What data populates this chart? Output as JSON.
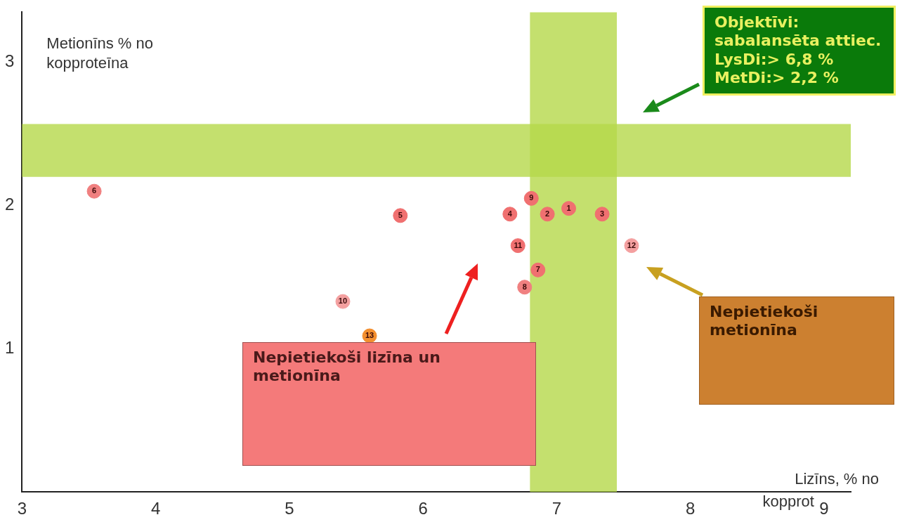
{
  "chart_data": {
    "type": "scatter",
    "xlabel": "Lizīns, % no kopprot",
    "ylabel": "Metionīns % no kopproteīna",
    "series": [
      {
        "name": "1",
        "x": [
          7.09
        ],
        "values": [
          1.98
        ],
        "color": "#f07070"
      },
      {
        "name": "2",
        "x": [
          6.93
        ],
        "values": [
          1.94
        ],
        "color": "#f07070"
      },
      {
        "name": "3",
        "x": [
          7.34
        ],
        "values": [
          1.94
        ],
        "color": "#f07070"
      },
      {
        "name": "4",
        "x": [
          6.65
        ],
        "values": [
          1.94
        ],
        "color": "#f07070"
      },
      {
        "name": "5",
        "x": [
          5.83
        ],
        "values": [
          1.93
        ],
        "color": "#f07070"
      },
      {
        "name": "6",
        "x": [
          3.54
        ],
        "values": [
          2.1
        ],
        "color": "#f08080"
      },
      {
        "name": "7",
        "x": [
          6.86
        ],
        "values": [
          1.55
        ],
        "color": "#f07070"
      },
      {
        "name": "8",
        "x": [
          6.76
        ],
        "values": [
          1.43
        ],
        "color": "#f08080"
      },
      {
        "name": "9",
        "x": [
          6.81
        ],
        "values": [
          2.05
        ],
        "color": "#f07070"
      },
      {
        "name": "10",
        "x": [
          5.4
        ],
        "values": [
          1.33
        ],
        "color": "#f4a0a0"
      },
      {
        "name": "11",
        "x": [
          6.71
        ],
        "values": [
          1.72
        ],
        "color": "#f07070"
      },
      {
        "name": "12",
        "x": [
          7.56
        ],
        "values": [
          1.72
        ],
        "color": "#f4a0a0"
      },
      {
        "name": "13",
        "x": [
          5.6
        ],
        "values": [
          1.09
        ],
        "color": "#f39030"
      }
    ],
    "xlim": [
      3,
      9.2
    ],
    "xticks": [
      3,
      4,
      5,
      6,
      7,
      8,
      9
    ],
    "ylim": [
      0,
      3.35
    ],
    "yticks": [
      1,
      2,
      3
    ],
    "bands": [
      {
        "axis": "y",
        "from": 2.2,
        "to": 2.57,
        "color": "#b5d84a"
      },
      {
        "axis": "x",
        "from": 6.8,
        "to": 7.45,
        "color": "#b5d84a"
      }
    ],
    "annotations": [
      "Objektīvi: sabalansēta attiec.  LysDi:> 6,8 %  MetDi:> 2,2 %",
      "Nepietiekoši lizīna un metionīna",
      "Nepietiekoši metionīna"
    ],
    "marker": "circle",
    "grid": false,
    "legend": false
  }
}
